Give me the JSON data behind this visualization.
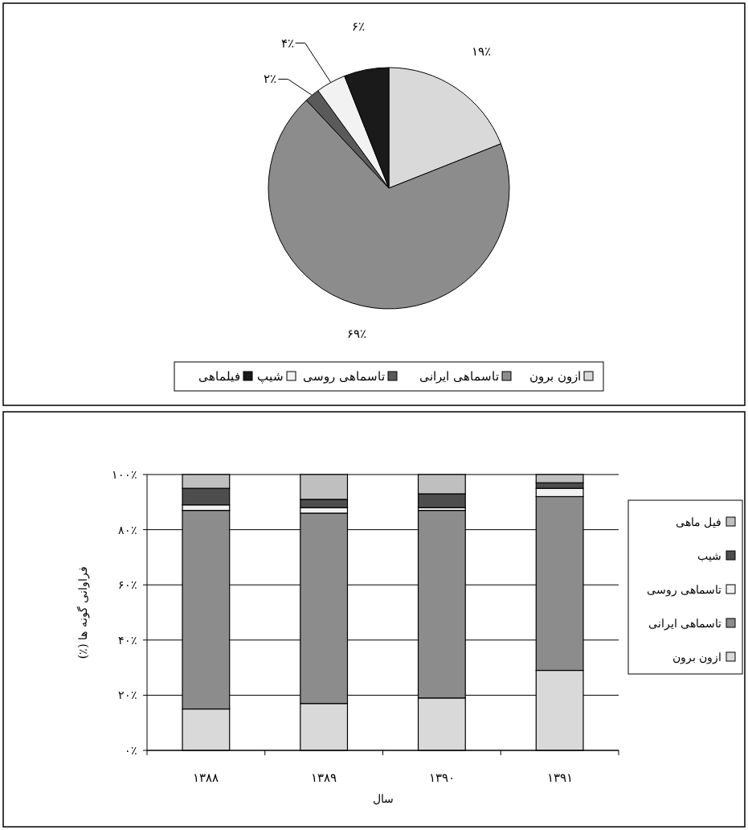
{
  "chart_data": [
    {
      "type": "pie",
      "categories": [
        "ازون برون",
        "تاسماهی ایرانی",
        "تاسماهی روسی",
        "شیپ",
        "فیلماهی"
      ],
      "values": [
        19,
        69,
        2,
        4,
        6
      ],
      "colors": [
        "#d9d9d9",
        "#8c8c8c",
        "#5a5a5a",
        "#f2f2f2",
        "#1a1a1a"
      ],
      "value_labels": [
        "۱۹٪",
        "۶۹٪",
        "۲٪",
        "۴٪",
        "۶٪"
      ],
      "legend": "bottom"
    },
    {
      "type": "bar",
      "stacked": true,
      "categories": [
        "۱۳۸۸",
        "۱۳۸۹",
        "۱۳۹۰",
        "۱۳۹۱"
      ],
      "xlabel": "سال",
      "ylabel": "فراوانی گونه ها (٪)",
      "ylim": [
        0,
        100
      ],
      "yticks": [
        {
          "value": 0,
          "label": "۰٪"
        },
        {
          "value": 20,
          "label": "۲۰٪"
        },
        {
          "value": 40,
          "label": "۴۰٪"
        },
        {
          "value": 60,
          "label": "۶۰٪"
        },
        {
          "value": 80,
          "label": "۸۰٪"
        },
        {
          "value": 100,
          "label": "۱۰۰٪"
        }
      ],
      "grid": "y",
      "legend": "right",
      "series": [
        {
          "name": "ازون برون",
          "color": "#d9d9d9",
          "values": [
            15,
            17,
            19,
            29
          ]
        },
        {
          "name": "تاسماهی ایرانی",
          "color": "#8c8c8c",
          "values": [
            72,
            69,
            68,
            63
          ]
        },
        {
          "name": "تاسماهی روسی",
          "color": "#f2f2f2",
          "values": [
            2,
            2,
            1,
            3
          ]
        },
        {
          "name": "شیب",
          "color": "#4d4d4d",
          "values": [
            6,
            3,
            5,
            2
          ]
        },
        {
          "name": "فیل ماهی",
          "color": "#bfbfbf",
          "values": [
            5,
            9,
            7,
            3
          ]
        }
      ]
    }
  ]
}
